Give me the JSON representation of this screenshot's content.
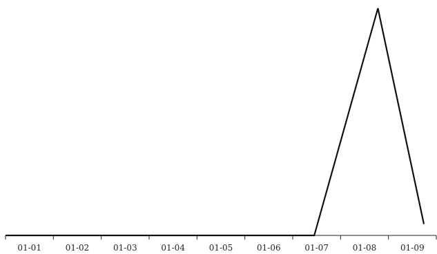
{
  "chart_data": {
    "type": "line",
    "title": "",
    "xlabel": "",
    "ylabel": "",
    "categories": [
      "01-01",
      "01-02",
      "01-03",
      "01-04",
      "01-05",
      "01-06",
      "01-07",
      "01-08",
      "01-09"
    ],
    "x": [
      "01-01",
      "01-02",
      "01-03",
      "01-04",
      "01-05",
      "01-06",
      "01-07",
      "01-07",
      "01-08",
      "01-09"
    ],
    "series": [
      {
        "values": [
          0,
          0,
          0,
          0,
          0,
          0,
          0,
          0,
          100,
          5
        ]
      }
    ],
    "ylim": [
      0,
      100
    ],
    "grid": false,
    "legend": "none",
    "line_color": "#111111",
    "axis_color": "#222222"
  }
}
